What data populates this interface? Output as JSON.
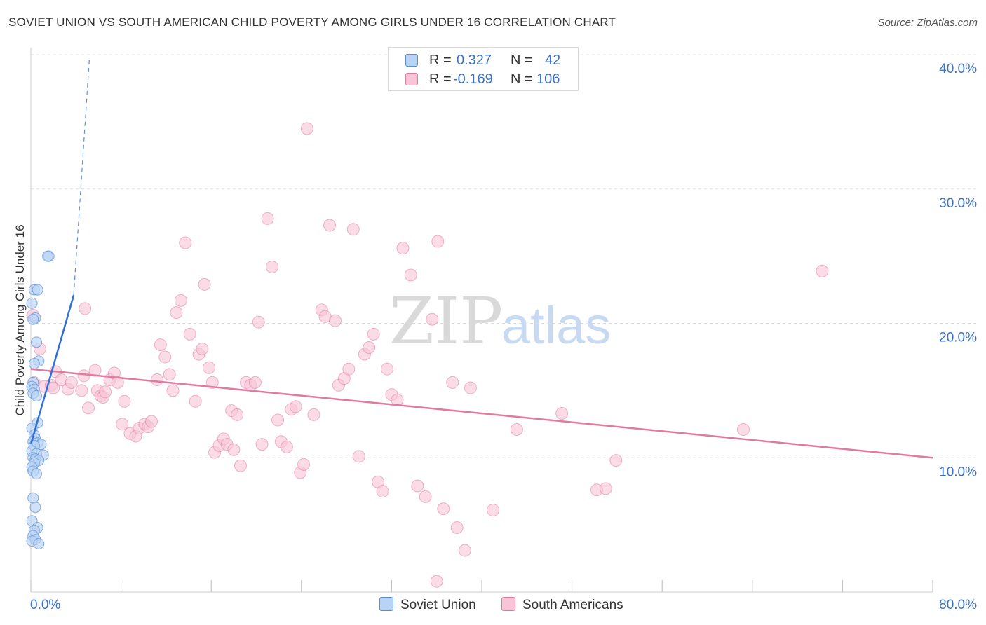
{
  "title": "SOVIET UNION VS SOUTH AMERICAN CHILD POVERTY AMONG GIRLS UNDER 16 CORRELATION CHART",
  "source": "Source: ZipAtlas.com",
  "watermark": {
    "zip": "ZIP",
    "atlas": "atlas"
  },
  "legend": {
    "rows": [
      {
        "r_label": "R =",
        "r_value": "0.327",
        "n_label": "N =",
        "n_value": "42",
        "fill": "#b8d3f5",
        "stroke": "#5a8fd6"
      },
      {
        "r_label": "R =",
        "r_value": "-0.169",
        "n_label": "N =",
        "n_value": "106",
        "fill": "#f9c4d6",
        "stroke": "#e07aa0"
      }
    ]
  },
  "bottom_legend": [
    {
      "label": "Soviet Union",
      "fill": "#b8d3f5",
      "stroke": "#5a8fd6"
    },
    {
      "label": "South Americans",
      "fill": "#f9c4d6",
      "stroke": "#e07aa0"
    }
  ],
  "chart_data": {
    "type": "scatter",
    "title": "SOVIET UNION VS SOUTH AMERICAN CHILD POVERTY AMONG GIRLS UNDER 16 CORRELATION CHART",
    "xlabel": "",
    "ylabel": "Child Poverty Among Girls Under 16",
    "xlim": [
      0,
      80
    ],
    "ylim": [
      0,
      40
    ],
    "x_tick_labels": [
      "0.0%",
      "80.0%"
    ],
    "y_ticks": [
      10,
      20,
      30,
      40
    ],
    "y_tick_labels": [
      "10.0%",
      "20.0%",
      "30.0%",
      "40.0%"
    ],
    "grid": true,
    "legend_position": "top-center",
    "colors": {
      "soviet": "#5a8fd6",
      "soviet_fill": "#b8d3f5",
      "south": "#e07aa0",
      "south_fill": "#f9c4d6",
      "axis_labels": "#3a72c4"
    },
    "series": [
      {
        "name": "Soviet Union",
        "r": 0.327,
        "n": 42,
        "trend": {
          "x": [
            0.0,
            3.8
          ],
          "y": [
            11.0,
            22.1
          ]
        },
        "trend_ext": {
          "x": [
            3.8,
            5.2
          ],
          "y": [
            22.1,
            39.8
          ]
        },
        "points": [
          [
            1.6,
            25.0
          ],
          [
            1.5,
            25.0
          ],
          [
            0.3,
            22.5
          ],
          [
            0.6,
            22.5
          ],
          [
            0.1,
            21.5
          ],
          [
            0.4,
            20.4
          ],
          [
            0.2,
            20.3
          ],
          [
            0.5,
            18.6
          ],
          [
            0.7,
            17.2
          ],
          [
            0.3,
            17.0
          ],
          [
            0.2,
            15.6
          ],
          [
            0.1,
            15.3
          ],
          [
            0.3,
            15.1
          ],
          [
            0.2,
            14.8
          ],
          [
            0.5,
            14.6
          ],
          [
            0.6,
            12.6
          ],
          [
            0.1,
            12.2
          ],
          [
            0.3,
            11.7
          ],
          [
            0.4,
            11.4
          ],
          [
            0.2,
            11.2
          ],
          [
            0.6,
            11.1
          ],
          [
            0.9,
            11.0
          ],
          [
            0.3,
            10.9
          ],
          [
            0.1,
            10.5
          ],
          [
            0.5,
            10.3
          ],
          [
            1.1,
            10.2
          ],
          [
            0.2,
            10.0
          ],
          [
            0.4,
            9.9
          ],
          [
            0.7,
            9.8
          ],
          [
            0.3,
            9.6
          ],
          [
            0.1,
            9.3
          ],
          [
            0.2,
            9.0
          ],
          [
            0.5,
            8.8
          ],
          [
            0.2,
            7.0
          ],
          [
            0.4,
            6.3
          ],
          [
            0.1,
            5.3
          ],
          [
            0.6,
            4.8
          ],
          [
            0.3,
            4.6
          ],
          [
            0.2,
            4.2
          ],
          [
            0.4,
            3.9
          ],
          [
            0.1,
            3.8
          ],
          [
            0.7,
            3.6
          ]
        ]
      },
      {
        "name": "South Americans",
        "r": -0.169,
        "n": 106,
        "trend": {
          "x": [
            0,
            80
          ],
          "y": [
            16.6,
            10.0
          ]
        },
        "points": [
          [
            0.2,
            20.6
          ],
          [
            0.8,
            18.1
          ],
          [
            0.3,
            15.6
          ],
          [
            1.2,
            15.3
          ],
          [
            1.8,
            15.4
          ],
          [
            2.0,
            15.2
          ],
          [
            2.2,
            16.4
          ],
          [
            2.7,
            15.8
          ],
          [
            3.3,
            15.1
          ],
          [
            3.6,
            15.6
          ],
          [
            4.5,
            15.0
          ],
          [
            4.7,
            16.1
          ],
          [
            5.1,
            13.7
          ],
          [
            4.8,
            21.1
          ],
          [
            5.7,
            16.5
          ],
          [
            5.9,
            15.0
          ],
          [
            6.2,
            14.6
          ],
          [
            6.4,
            14.5
          ],
          [
            6.6,
            14.9
          ],
          [
            7.0,
            15.8
          ],
          [
            7.4,
            16.3
          ],
          [
            7.7,
            15.6
          ],
          [
            8.1,
            12.5
          ],
          [
            8.3,
            14.2
          ],
          [
            8.8,
            11.8
          ],
          [
            9.3,
            11.6
          ],
          [
            9.6,
            12.2
          ],
          [
            10.1,
            12.5
          ],
          [
            10.4,
            12.3
          ],
          [
            10.7,
            12.7
          ],
          [
            11.2,
            15.8
          ],
          [
            11.5,
            18.4
          ],
          [
            11.9,
            17.5
          ],
          [
            12.3,
            16.2
          ],
          [
            12.6,
            15.0
          ],
          [
            12.9,
            20.8
          ],
          [
            13.3,
            21.7
          ],
          [
            13.7,
            26.0
          ],
          [
            14.1,
            19.2
          ],
          [
            14.6,
            14.2
          ],
          [
            14.9,
            17.7
          ],
          [
            15.2,
            18.1
          ],
          [
            15.4,
            22.9
          ],
          [
            15.8,
            16.7
          ],
          [
            16.1,
            15.6
          ],
          [
            16.3,
            10.4
          ],
          [
            16.7,
            10.9
          ],
          [
            17.1,
            11.4
          ],
          [
            17.4,
            11.0
          ],
          [
            17.8,
            13.5
          ],
          [
            18.0,
            10.6
          ],
          [
            18.3,
            13.2
          ],
          [
            18.6,
            9.4
          ],
          [
            19.1,
            15.6
          ],
          [
            19.5,
            15.4
          ],
          [
            19.9,
            15.6
          ],
          [
            20.2,
            20.1
          ],
          [
            20.5,
            11.0
          ],
          [
            21.0,
            27.8
          ],
          [
            21.4,
            24.2
          ],
          [
            21.9,
            12.8
          ],
          [
            22.2,
            11.2
          ],
          [
            22.7,
            10.8
          ],
          [
            23.1,
            13.6
          ],
          [
            23.5,
            13.8
          ],
          [
            23.9,
            8.9
          ],
          [
            24.2,
            9.5
          ],
          [
            24.5,
            34.5
          ],
          [
            25.1,
            13.2
          ],
          [
            25.8,
            21.0
          ],
          [
            26.1,
            20.5
          ],
          [
            26.5,
            27.3
          ],
          [
            27.0,
            20.2
          ],
          [
            27.3,
            15.4
          ],
          [
            27.8,
            15.9
          ],
          [
            28.2,
            16.6
          ],
          [
            28.6,
            27.0
          ],
          [
            29.1,
            10.1
          ],
          [
            29.6,
            17.7
          ],
          [
            30.0,
            18.2
          ],
          [
            30.4,
            19.2
          ],
          [
            30.8,
            8.2
          ],
          [
            31.2,
            7.5
          ],
          [
            31.6,
            16.6
          ],
          [
            32.0,
            14.7
          ],
          [
            32.5,
            14.3
          ],
          [
            33.0,
            25.6
          ],
          [
            33.7,
            23.6
          ],
          [
            34.3,
            7.9
          ],
          [
            35.0,
            7.1
          ],
          [
            35.6,
            20.3
          ],
          [
            36.1,
            26.1
          ],
          [
            36.6,
            6.2
          ],
          [
            37.4,
            15.6
          ],
          [
            37.8,
            4.8
          ],
          [
            38.5,
            3.1
          ],
          [
            36.0,
            0.8
          ],
          [
            39.0,
            15.2
          ],
          [
            41.0,
            6.1
          ],
          [
            43.1,
            12.1
          ],
          [
            47.1,
            13.3
          ],
          [
            50.2,
            7.6
          ],
          [
            51.0,
            7.7
          ],
          [
            51.9,
            9.8
          ],
          [
            63.2,
            12.1
          ],
          [
            70.2,
            23.9
          ]
        ]
      }
    ]
  }
}
